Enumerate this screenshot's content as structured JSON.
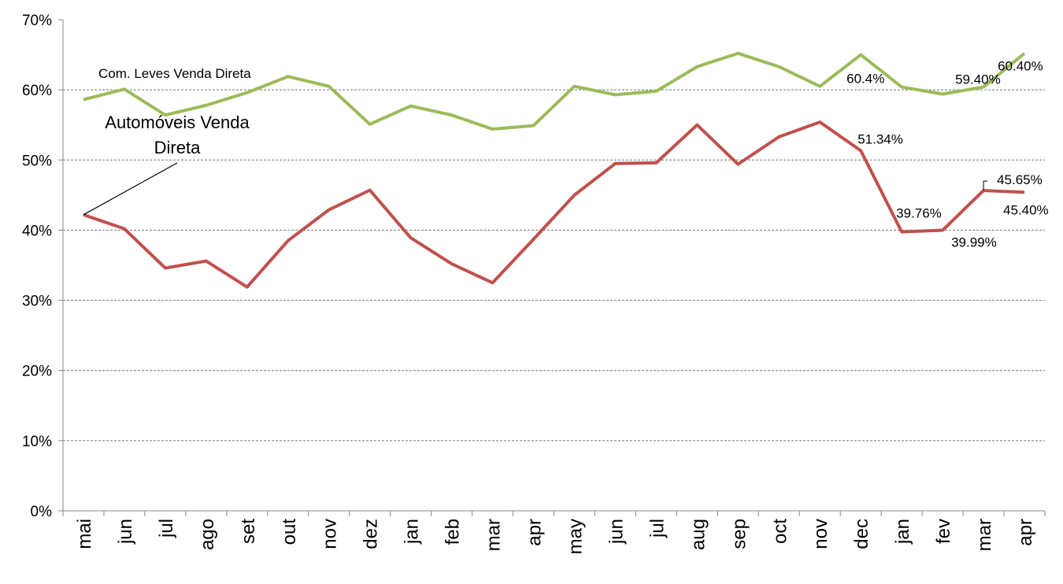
{
  "chart_data": {
    "type": "line",
    "categories": [
      "mai",
      "jun",
      "jul",
      "ago",
      "set",
      "out",
      "nov",
      "dez",
      "jan",
      "feb",
      "mar",
      "apr",
      "may",
      "jun",
      "jul",
      "aug",
      "sep",
      "oct",
      "nov",
      "dec",
      "jan",
      "fev",
      "mar",
      "apr"
    ],
    "series": [
      {
        "name": "Com. Leves Venda Direta",
        "color": "#9bbb59",
        "values": [
          58.6,
          60.1,
          56.4,
          57.8,
          59.6,
          61.9,
          60.5,
          55.1,
          57.7,
          56.4,
          54.4,
          54.9,
          60.5,
          59.3,
          59.8,
          63.3,
          65.2,
          63.3,
          60.5,
          65.0,
          60.4,
          59.4,
          60.4,
          65.2
        ],
        "value_labels": [
          null,
          null,
          null,
          null,
          null,
          null,
          null,
          null,
          null,
          null,
          null,
          null,
          null,
          null,
          null,
          null,
          null,
          null,
          null,
          null,
          "60.4%",
          "59.40%",
          "60.40%",
          null
        ]
      },
      {
        "name": "Automóveis Venda Direta",
        "color": "#c0504d",
        "values": [
          42.2,
          40.2,
          34.6,
          35.6,
          31.9,
          38.5,
          42.9,
          45.7,
          38.9,
          35.2,
          32.5,
          38.7,
          45.0,
          49.5,
          49.6,
          55.0,
          49.4,
          53.3,
          55.4,
          51.34,
          39.76,
          39.99,
          45.65,
          45.4
        ],
        "value_labels": [
          null,
          null,
          null,
          null,
          null,
          null,
          null,
          null,
          null,
          null,
          null,
          null,
          null,
          null,
          null,
          null,
          null,
          null,
          null,
          "51.34%",
          "39.76%",
          "39.99%",
          "45.65%",
          "45.40%"
        ]
      }
    ],
    "ylim": [
      0,
      70
    ],
    "yticks": [
      {
        "value": 0,
        "label": "0%"
      },
      {
        "value": 10,
        "label": "10%"
      },
      {
        "value": 20,
        "label": "20%"
      },
      {
        "value": 30,
        "label": "30%"
      },
      {
        "value": 40,
        "label": "40%"
      },
      {
        "value": 50,
        "label": "50%"
      },
      {
        "value": 60,
        "label": "60%"
      },
      {
        "value": 70,
        "label": "70%"
      }
    ],
    "grid": true
  }
}
